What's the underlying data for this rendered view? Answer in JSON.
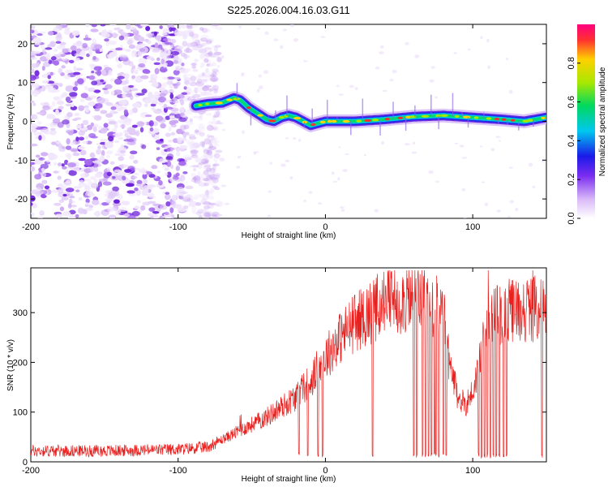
{
  "figure": {
    "title": "S225.2026.004.16.03.G11"
  },
  "chart_data": [
    {
      "type": "heatmap",
      "title": "",
      "xlabel": "Height of straight line (km)",
      "ylabel": "Frequency (Hz)",
      "xlim": [
        -200,
        150
      ],
      "ylim": [
        -25,
        25
      ],
      "xticks": [
        -200,
        -100,
        0,
        100
      ],
      "yticks": [
        -20,
        -10,
        0,
        10,
        20
      ],
      "colorbar": {
        "label": "Normalized spectral amplitude",
        "range": [
          0,
          1
        ],
        "ticks": [
          0.0,
          0.2,
          0.4,
          0.6,
          0.8
        ],
        "tick_labels": [
          "0.0",
          "0.2",
          "0.4",
          "0.6",
          "0.8"
        ]
      },
      "ridge": {
        "name": "peak frequency",
        "x": [
          -88,
          -80,
          -70,
          -62,
          -58,
          -52,
          -46,
          -40,
          -35,
          -30,
          -25,
          -20,
          -15,
          -10,
          -5,
          0,
          20,
          40,
          60,
          80,
          100,
          120,
          135,
          150
        ],
        "y": [
          4,
          4.5,
          4.8,
          6,
          5.5,
          3.5,
          2,
          0.5,
          0,
          1,
          1.5,
          1,
          0,
          -1,
          -0.5,
          0,
          0,
          0.5,
          1.2,
          1.5,
          1.0,
          0.5,
          0,
          1
        ]
      },
      "noise_region_x": [
        -200,
        -80
      ]
    },
    {
      "type": "line",
      "title": "",
      "xlabel": "Height of straight line (km)",
      "ylabel": "SNR (10 * v/v)",
      "xlim": [
        -200,
        150
      ],
      "ylim": [
        0,
        390
      ],
      "xticks": [
        -200,
        -100,
        0,
        100
      ],
      "yticks": [
        0,
        100,
        200,
        300
      ],
      "series": [
        {
          "name": "SNR",
          "color": "#e8211f",
          "envelope_x": [
            -200,
            -150,
            -100,
            -80,
            -70,
            -60,
            -50,
            -40,
            -30,
            -20,
            -10,
            0,
            10,
            20,
            30,
            40,
            50,
            60,
            70,
            80,
            85,
            90,
            95,
            100,
            105,
            110,
            120,
            130,
            140,
            150
          ],
          "envelope_y": [
            22,
            22,
            25,
            30,
            45,
            60,
            75,
            90,
            110,
            130,
            165,
            210,
            250,
            280,
            300,
            320,
            325,
            328,
            330,
            300,
            180,
            130,
            115,
            140,
            200,
            280,
            300,
            305,
            308,
            310
          ],
          "dropouts_x": [
            -18,
            -12,
            -5,
            -2,
            32,
            60,
            62,
            66,
            68,
            70,
            72,
            74,
            75,
            77,
            80,
            82,
            104,
            106,
            108,
            110,
            112,
            114,
            116,
            118,
            121,
            123,
            147
          ]
        }
      ]
    }
  ]
}
